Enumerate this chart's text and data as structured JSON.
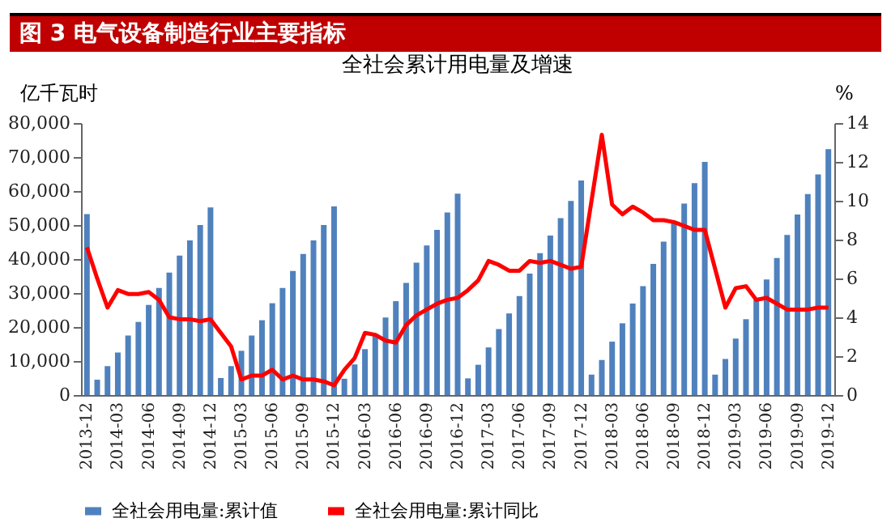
{
  "chart_data": {
    "type": "bar",
    "title": "图 3   电气设备制造行业主要指标",
    "subtitle": "全社会累计用电量及增速",
    "ylabel": "亿千瓦时",
    "y2label": "%",
    "categories": [
      "2013-12",
      null,
      null,
      "2014-03",
      null,
      null,
      "2014-06",
      null,
      null,
      "2014-09",
      null,
      null,
      "2014-12",
      null,
      null,
      "2015-03",
      null,
      null,
      "2015-06",
      null,
      null,
      "2015-09",
      null,
      null,
      "2015-12",
      null,
      null,
      "2016-03",
      null,
      null,
      "2016-06",
      null,
      null,
      "2016-09",
      null,
      null,
      "2016-12",
      null,
      null,
      "2017-03",
      null,
      null,
      "2017-06",
      null,
      null,
      "2017-09",
      null,
      null,
      "2017-12",
      null,
      null,
      "2018-03",
      null,
      null,
      "2018-06",
      null,
      null,
      "2018-09",
      null,
      null,
      "2018-12",
      null,
      null,
      "2019-03",
      null,
      null,
      "2019-06",
      null,
      null,
      "2019-09",
      null,
      null,
      "2019-12"
    ],
    "series": [
      {
        "name": "全社会用电量:累计值",
        "color": "#4f81bd",
        "values": [
          53200,
          4500,
          8500,
          12500,
          17500,
          21500,
          26500,
          31500,
          36000,
          41000,
          45500,
          50000,
          55200,
          5000,
          8500,
          13000,
          17500,
          22000,
          27000,
          31500,
          36500,
          41500,
          45500,
          50000,
          55500,
          4800,
          9000,
          13500,
          18000,
          22800,
          27600,
          33000,
          38900,
          44000,
          48600,
          53700,
          59200,
          4900,
          8900,
          14000,
          19400,
          24000,
          29100,
          35700,
          41700,
          46900,
          52000,
          57100,
          63100,
          6000,
          10300,
          15700,
          21100,
          26900,
          32000,
          38600,
          45100,
          50600,
          56300,
          62300,
          68600,
          6000,
          10600,
          16600,
          22300,
          28000,
          34000,
          40300,
          47100,
          53100,
          59100,
          64900,
          72300
        ]
      },
      {
        "name": "全社会用电量:累计同比",
        "type": "line",
        "axis": "y2",
        "color": "#ff0000",
        "values": [
          7.6,
          6.0,
          4.5,
          5.4,
          5.2,
          5.2,
          5.3,
          4.9,
          4.0,
          3.9,
          3.9,
          3.8,
          3.9,
          3.2,
          2.5,
          0.8,
          1.0,
          1.0,
          1.3,
          0.8,
          1.0,
          0.8,
          0.8,
          0.7,
          0.5,
          1.3,
          1.9,
          3.2,
          3.1,
          2.8,
          2.7,
          3.6,
          4.1,
          4.4,
          4.7,
          4.9,
          5.0,
          5.4,
          5.9,
          6.9,
          6.7,
          6.4,
          6.4,
          6.9,
          6.8,
          6.9,
          6.7,
          6.5,
          6.6,
          10.0,
          13.4,
          9.8,
          9.3,
          9.7,
          9.4,
          9.0,
          9.0,
          8.9,
          8.7,
          8.5,
          8.5,
          6.5,
          4.5,
          5.5,
          5.6,
          4.9,
          5.0,
          4.7,
          4.4,
          4.4,
          4.4,
          4.5,
          4.5
        ]
      }
    ],
    "ylim": [
      0,
      80000
    ],
    "yticks": [
      0,
      {
        "value": 10000,
        "label": "10,000"
      },
      {
        "value": 20000,
        "label": "20,000"
      },
      {
        "value": 30000,
        "label": "30,000"
      },
      {
        "value": 40000,
        "label": "40,000"
      },
      {
        "value": 50000,
        "label": "50,000"
      },
      {
        "value": 60000,
        "label": "60,000"
      },
      {
        "value": 70000,
        "label": "70,000"
      },
      {
        "value": 80000,
        "label": "80,000"
      }
    ],
    "y2lim": [
      0,
      14
    ],
    "y2ticks": [
      0,
      2,
      4,
      6,
      8,
      10,
      12,
      14
    ],
    "legend": "bottom",
    "grid": false
  }
}
